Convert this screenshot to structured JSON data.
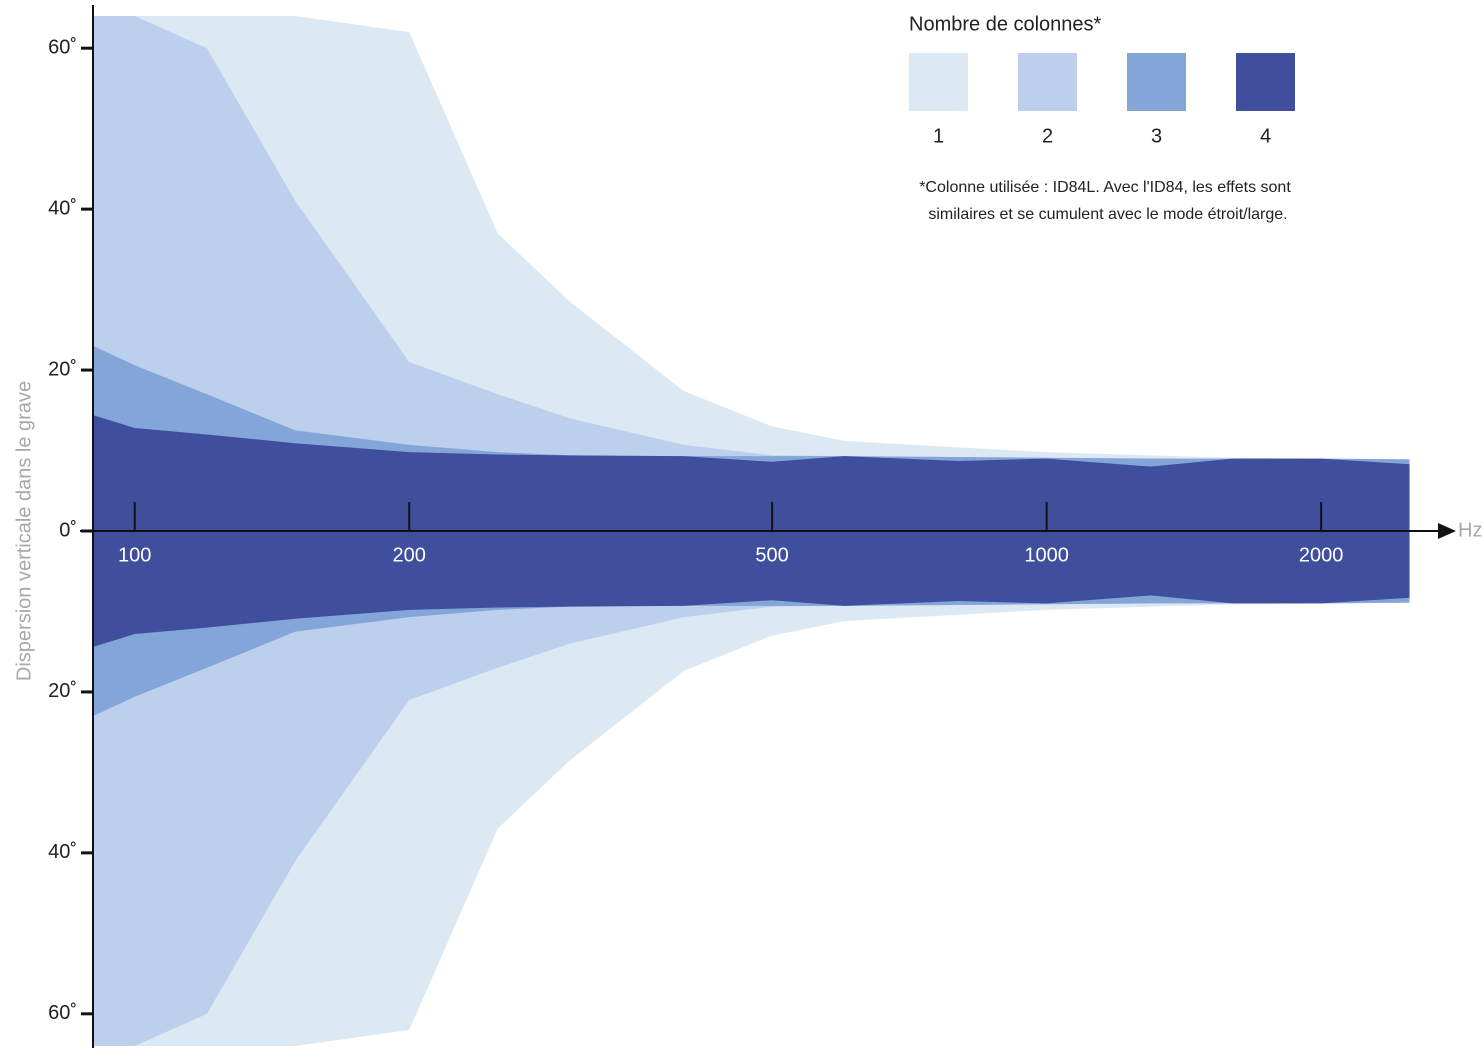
{
  "chart_data": {
    "type": "mirrored-area",
    "y_axis_label": "Dispersion verticale dans le grave",
    "x_unit": "Hz",
    "x_scale": "log",
    "x": [
      90,
      100,
      120,
      150,
      200,
      250,
      300,
      400,
      500,
      600,
      800,
      1000,
      1300,
      1600,
      2000,
      2500
    ],
    "series": [
      {
        "name": "1",
        "color": "#dce9f2",
        "values": [
          64,
          64,
          64,
          64,
          62,
          37,
          28.5,
          17.4,
          13,
          11.2,
          10.4,
          9.8,
          9.4,
          9.1,
          9,
          8.9
        ]
      },
      {
        "name": "2",
        "color": "#bccfec",
        "values": [
          64,
          64,
          60,
          41,
          21,
          17,
          14,
          10.7,
          9.4,
          9.3,
          9.2,
          9.1,
          9,
          9,
          9,
          8.9
        ]
      },
      {
        "name": "3",
        "color": "#84a5d8",
        "values": [
          23,
          20.6,
          17,
          12.5,
          10.7,
          9.8,
          9.4,
          9.3,
          9.3,
          9.3,
          9.2,
          9.1,
          9,
          9,
          9,
          8.9
        ]
      },
      {
        "name": "4",
        "color": "#3f4f9e",
        "values": [
          14.4,
          12.8,
          12,
          10.9,
          9.8,
          9.5,
          9.4,
          9.3,
          8.6,
          9.3,
          8.7,
          9,
          8,
          9,
          9,
          8.3
        ]
      }
    ],
    "legend_title": "Nombre de colonnes*",
    "note": [
      "*Colonne utilisée : ID84L. Avec l'ID84, les effets sont",
      "similaires et se cumulent avec le mode étroit/large."
    ],
    "xlim": [
      90,
      2700
    ],
    "xticks": [
      100,
      200,
      500,
      1000,
      2000
    ],
    "ylim": [
      -64,
      64
    ],
    "yticks": [
      {
        "value": 60,
        "label": "60˚"
      },
      {
        "value": 40,
        "label": "40˚"
      },
      {
        "value": 20,
        "label": "20˚"
      },
      {
        "value": 0,
        "label": "0˚"
      },
      {
        "value": -20,
        "label": "20˚"
      },
      {
        "value": -40,
        "label": "40˚"
      },
      {
        "value": -60,
        "label": "60˚"
      }
    ]
  }
}
